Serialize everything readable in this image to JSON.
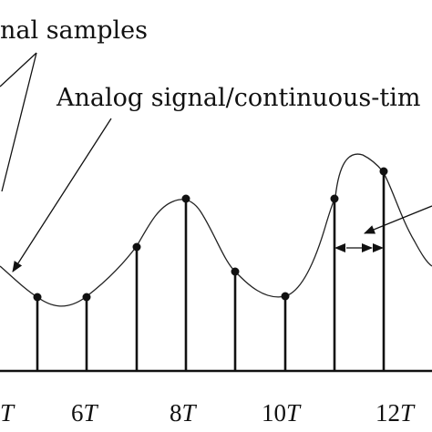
{
  "labels": {
    "samples_text": "nal samples",
    "analog_text": "Analog signal/continuous-tim"
  },
  "ticks": [
    {
      "num": "",
      "unit": "T"
    },
    {
      "num": "6",
      "unit": "T"
    },
    {
      "num": "8",
      "unit": "T"
    },
    {
      "num": "10",
      "unit": "T"
    },
    {
      "num": "12",
      "unit": "T"
    }
  ],
  "colors": {
    "ink": "#111111",
    "background": "#ffffff"
  }
}
